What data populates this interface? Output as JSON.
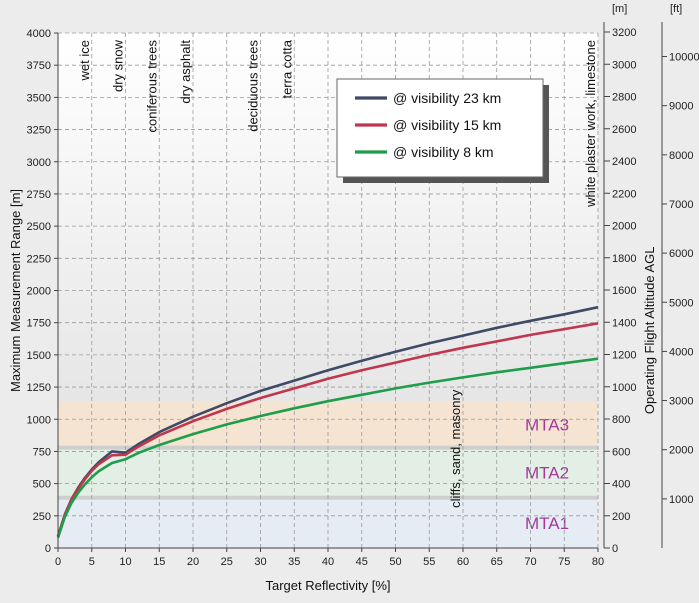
{
  "chart_data": {
    "type": "line",
    "xlabel": "Target Reflectivity [%]",
    "ylabel": "Maximum Measurement Range [m]",
    "y2label": "Operating Flight Altitude AGL",
    "y2unit": "[m]",
    "y3unit": "[ft]",
    "xlim": [
      0,
      80
    ],
    "ylim": [
      0,
      4000
    ],
    "grid": true,
    "legend_position": "top-right",
    "x_ticks": [
      0,
      5,
      10,
      15,
      20,
      25,
      30,
      35,
      40,
      45,
      50,
      55,
      60,
      65,
      70,
      75,
      80
    ],
    "y_ticks": [
      0,
      250,
      500,
      750,
      1000,
      1250,
      1500,
      1750,
      2000,
      2250,
      2500,
      2750,
      3000,
      3250,
      3500,
      3750,
      4000
    ],
    "y2_ticks": [
      0,
      200,
      400,
      600,
      800,
      1000,
      1200,
      1400,
      1600,
      1800,
      2000,
      2200,
      2400,
      2600,
      2800,
      3000,
      3200
    ],
    "y3_ticks": [
      1000,
      2000,
      3000,
      4000,
      5000,
      6000,
      7000,
      8000,
      9000,
      10000
    ],
    "series": [
      {
        "name": "@ visibility 23 km",
        "color": "#3f4a66",
        "x": [
          0,
          1,
          2,
          3,
          4,
          5,
          6,
          8,
          10,
          12,
          15,
          20,
          25,
          30,
          35,
          40,
          45,
          50,
          55,
          60,
          65,
          70,
          75,
          80
        ],
        "y": [
          90,
          260,
          380,
          470,
          545,
          610,
          665,
          750,
          740,
          810,
          900,
          1020,
          1125,
          1220,
          1300,
          1380,
          1455,
          1525,
          1590,
          1650,
          1710,
          1765,
          1815,
          1870
        ]
      },
      {
        "name": "@ visibility 15 km",
        "color": "#c0364f",
        "x": [
          0,
          1,
          2,
          3,
          4,
          5,
          6,
          8,
          10,
          12,
          15,
          20,
          25,
          30,
          35,
          40,
          45,
          50,
          55,
          60,
          65,
          70,
          75,
          80
        ],
        "y": [
          90,
          255,
          375,
          460,
          535,
          600,
          650,
          720,
          725,
          790,
          875,
          985,
          1080,
          1165,
          1240,
          1315,
          1380,
          1440,
          1500,
          1555,
          1605,
          1655,
          1700,
          1745
        ]
      },
      {
        "name": "@ visibility 8 km",
        "color": "#1e9e4a",
        "x": [
          0,
          1,
          2,
          3,
          4,
          5,
          6,
          8,
          10,
          12,
          15,
          20,
          25,
          30,
          35,
          40,
          45,
          50,
          55,
          60,
          65,
          70,
          75,
          80
        ],
        "y": [
          80,
          240,
          350,
          430,
          495,
          550,
          595,
          660,
          690,
          740,
          800,
          885,
          960,
          1025,
          1085,
          1140,
          1190,
          1240,
          1285,
          1325,
          1365,
          1400,
          1435,
          1470
        ]
      }
    ],
    "surfaces": [
      {
        "label": "wet ice",
        "x": 5
      },
      {
        "label": "dry snow",
        "x": 10
      },
      {
        "label": "coniferous trees",
        "x": 15
      },
      {
        "label": "dry asphalt",
        "x": 20
      },
      {
        "label": "deciduous trees",
        "x": 30
      },
      {
        "label": "terra cotta",
        "x": 35
      },
      {
        "label": "cliffs, sand, masonry",
        "x": 60
      },
      {
        "label": "white plaster work, limestone",
        "x": 80
      }
    ],
    "zones": [
      {
        "label": "MTA1",
        "y_from": 0,
        "y_to": 390,
        "color": "#e5ecf4"
      },
      {
        "label": "MTA2",
        "y_from": 390,
        "y_to": 780,
        "color": "#e3efe4"
      },
      {
        "label": "MTA3",
        "y_from": 780,
        "y_to": 1140,
        "color": "#f6e4d2"
      }
    ]
  }
}
